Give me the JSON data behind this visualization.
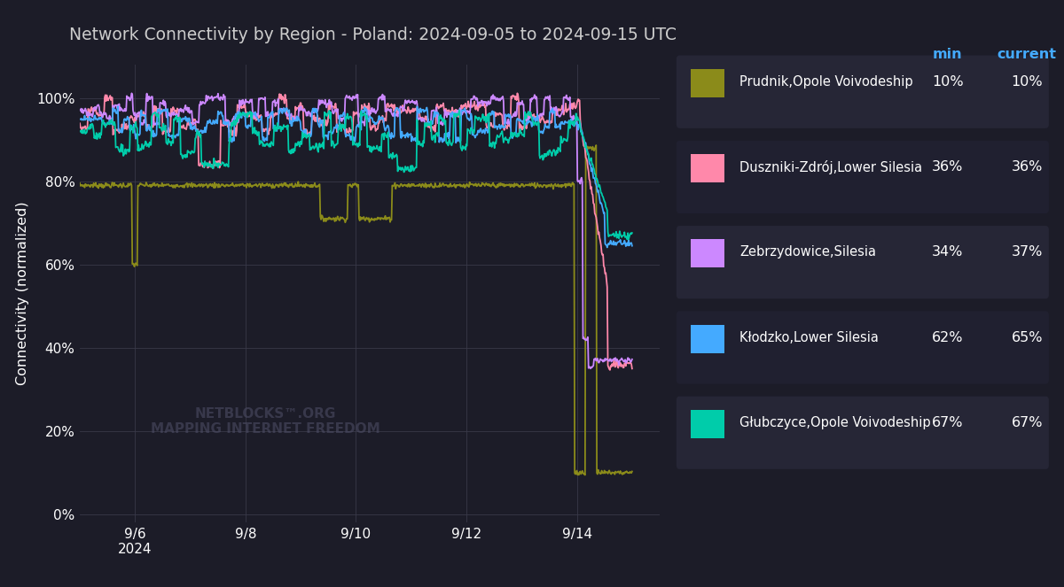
{
  "title": "Network Connectivity by Region - Poland: 2024-09-05 to 2024-09-15 UTC",
  "ylabel": "Connectivity (normalized)",
  "background_color": "#1c1c28",
  "plot_bg_color": "#1c1c28",
  "grid_color": "#3a3a4a",
  "text_color": "#ffffff",
  "title_color": "#cccccc",
  "legend_bg_color": "#2a2a3a",
  "series": [
    {
      "name": "Prudnik,Opole Voivodeship",
      "color": "#8b8b1a",
      "min": "10%",
      "current": "10%"
    },
    {
      "name": "Duszniki-Zdrój,Lower Silesia",
      "color": "#ff88aa",
      "min": "36%",
      "current": "36%"
    },
    {
      "name": "Zebrzydowice,Silesia",
      "color": "#cc88ff",
      "min": "34%",
      "current": "37%"
    },
    {
      "name": "Kłodzko,Lower Silesia",
      "color": "#44aaff",
      "min": "62%",
      "current": "65%"
    },
    {
      "name": "Głubczyce,Opole Voivodeship",
      "color": "#00ccaa",
      "min": "67%",
      "current": "67%"
    }
  ],
  "xtick_labels": [
    "9/6\n2024",
    "9/8",
    "9/10",
    "9/12",
    "9/14"
  ],
  "xtick_positions": [
    1,
    3,
    5,
    7,
    9
  ],
  "ytick_labels": [
    "0%",
    "20%",
    "40%",
    "60%",
    "80%",
    "100%"
  ],
  "ytick_positions": [
    0,
    20,
    40,
    60,
    80,
    100
  ],
  "ylim": [
    -2,
    108
  ],
  "xlim": [
    0.0,
    10.5
  ]
}
